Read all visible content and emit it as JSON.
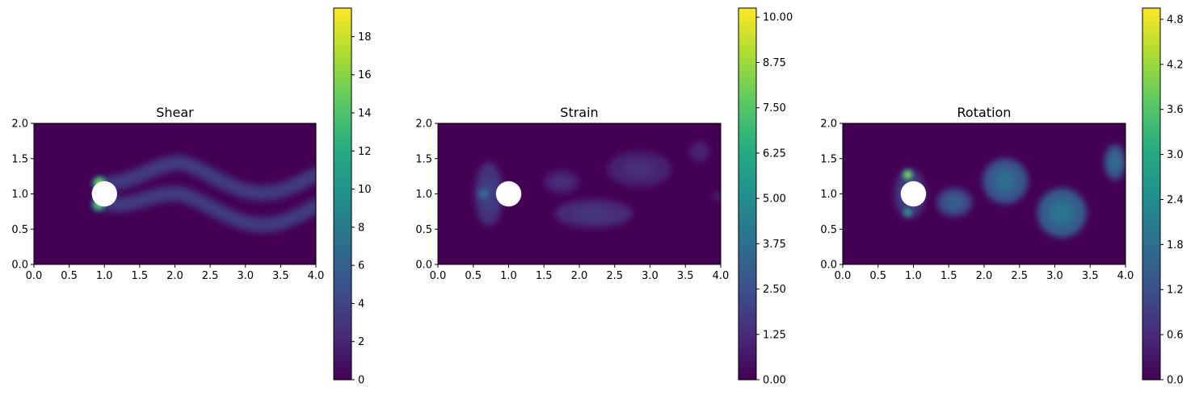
{
  "chart_data": [
    {
      "type": "heatmap",
      "title": "Shear",
      "xlabel": "",
      "ylabel": "",
      "xlim": [
        0,
        4
      ],
      "ylim": [
        0,
        2
      ],
      "xticks": [
        "0.0",
        "0.5",
        "1.0",
        "1.5",
        "2.0",
        "2.5",
        "3.0",
        "3.5",
        "4.0"
      ],
      "yticks": [
        "0.0",
        "0.5",
        "1.0",
        "1.5",
        "2.0"
      ],
      "colormap": "viridis",
      "colorbar": {
        "min": 0,
        "max": 19.5,
        "ticks": [
          "0",
          "2",
          "4",
          "6",
          "8",
          "10",
          "12",
          "14",
          "16",
          "18"
        ]
      },
      "obstacle": {
        "shape": "circle",
        "cx": 1.0,
        "cy": 1.0,
        "r": 0.18
      },
      "features": [
        {
          "kind": "wake",
          "x0": 1.1,
          "x1": 4.0,
          "y_upper": 1.15,
          "y_lower": 0.85,
          "amplitude": 0.3,
          "level": 3.2
        },
        {
          "kind": "hotspot",
          "x": 0.93,
          "y": 1.15,
          "r": 0.08,
          "level": 18.5
        },
        {
          "kind": "hotspot",
          "x": 0.92,
          "y": 0.85,
          "r": 0.08,
          "level": 16.5
        }
      ]
    },
    {
      "type": "heatmap",
      "title": "Strain",
      "xlabel": "",
      "ylabel": "",
      "xlim": [
        0,
        4
      ],
      "ylim": [
        0,
        2
      ],
      "xticks": [
        "0.0",
        "0.5",
        "1.0",
        "1.5",
        "2.0",
        "2.5",
        "3.0",
        "3.5",
        "4.0"
      ],
      "yticks": [
        "0.0",
        "0.5",
        "1.0",
        "1.5",
        "2.0"
      ],
      "colormap": "viridis",
      "colorbar": {
        "min": 0,
        "max": 10.25,
        "ticks": [
          "0.00",
          "1.25",
          "2.50",
          "3.75",
          "5.00",
          "6.25",
          "7.50",
          "8.75",
          "10.00"
        ]
      },
      "obstacle": {
        "shape": "circle",
        "cx": 1.0,
        "cy": 1.0,
        "r": 0.18
      },
      "features": [
        {
          "kind": "patch",
          "x": 0.72,
          "y": 1.0,
          "rx": 0.2,
          "ry": 0.45,
          "level": 2.0
        },
        {
          "kind": "hotspot",
          "x": 0.65,
          "y": 1.0,
          "r": 0.07,
          "level": 4.5
        },
        {
          "kind": "patch",
          "x": 1.75,
          "y": 1.17,
          "rx": 0.25,
          "ry": 0.16,
          "level": 1.4
        },
        {
          "kind": "patch",
          "x": 2.2,
          "y": 0.72,
          "rx": 0.55,
          "ry": 0.2,
          "level": 1.6
        },
        {
          "kind": "patch",
          "x": 2.85,
          "y": 1.35,
          "rx": 0.45,
          "ry": 0.25,
          "level": 1.3
        },
        {
          "kind": "patch",
          "x": 3.7,
          "y": 1.6,
          "rx": 0.15,
          "ry": 0.15,
          "level": 1.1
        },
        {
          "kind": "patch",
          "x": 3.95,
          "y": 0.97,
          "rx": 0.07,
          "ry": 0.06,
          "level": 1.0
        }
      ]
    },
    {
      "type": "heatmap",
      "title": "Rotation",
      "xlabel": "",
      "ylabel": "",
      "xlim": [
        0,
        4
      ],
      "ylim": [
        0,
        2
      ],
      "xticks": [
        "0.0",
        "0.5",
        "1.0",
        "1.5",
        "2.0",
        "2.5",
        "3.0",
        "3.5",
        "4.0"
      ],
      "yticks": [
        "0.0",
        "0.5",
        "1.0",
        "1.5",
        "2.0"
      ],
      "colormap": "viridis",
      "colorbar": {
        "min": 0,
        "max": 4.95,
        "ticks": [
          "0.0",
          "0.6",
          "1.2",
          "1.8",
          "2.4",
          "3.0",
          "3.6",
          "4.2",
          "4.8"
        ]
      },
      "obstacle": {
        "shape": "circle",
        "cx": 1.0,
        "cy": 1.0,
        "r": 0.18
      },
      "features": [
        {
          "kind": "patch",
          "x": 0.95,
          "y": 1.0,
          "rx": 0.22,
          "ry": 0.35,
          "level": 1.0
        },
        {
          "kind": "hotspot",
          "x": 0.92,
          "y": 1.27,
          "r": 0.06,
          "level": 4.8
        },
        {
          "kind": "hotspot",
          "x": 0.92,
          "y": 0.74,
          "r": 0.05,
          "level": 3.3
        },
        {
          "kind": "patch",
          "x": 1.58,
          "y": 0.88,
          "rx": 0.25,
          "ry": 0.2,
          "level": 1.5
        },
        {
          "kind": "patch",
          "x": 2.3,
          "y": 1.18,
          "rx": 0.32,
          "ry": 0.32,
          "level": 1.8
        },
        {
          "kind": "patch",
          "x": 3.1,
          "y": 0.73,
          "rx": 0.35,
          "ry": 0.35,
          "level": 1.9
        },
        {
          "kind": "patch",
          "x": 3.85,
          "y": 1.45,
          "rx": 0.15,
          "ry": 0.25,
          "level": 1.8
        }
      ]
    }
  ]
}
